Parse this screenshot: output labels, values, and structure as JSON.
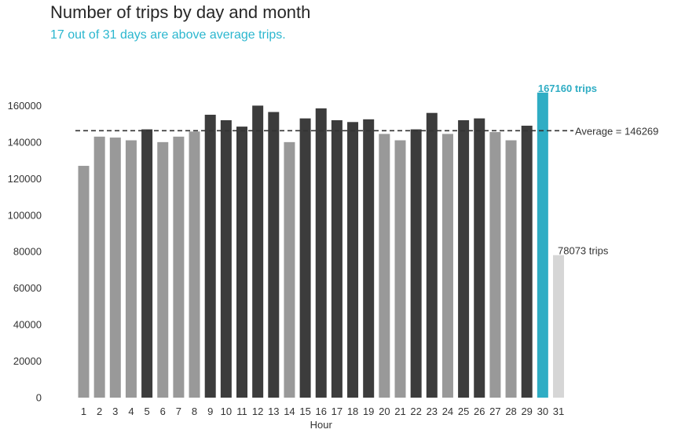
{
  "title": "Number of trips by day and month",
  "subtitle": "17 out of 31 days are above average trips.",
  "colors": {
    "above": "#3c3c3c",
    "below": "#999999",
    "max": "#2fadc4",
    "min": "#d6d6d6",
    "subtitle": "#2bb7cf",
    "average_line": "#333333"
  },
  "chart_data": {
    "type": "bar",
    "xlabel": "Hour",
    "ylabel": "",
    "ylim": [
      0,
      170000
    ],
    "yticks": [
      0,
      20000,
      40000,
      60000,
      80000,
      100000,
      120000,
      140000,
      160000
    ],
    "grid": false,
    "categories": [
      "1",
      "2",
      "3",
      "4",
      "5",
      "6",
      "7",
      "8",
      "9",
      "10",
      "11",
      "12",
      "13",
      "14",
      "15",
      "16",
      "17",
      "18",
      "19",
      "20",
      "21",
      "22",
      "23",
      "24",
      "25",
      "26",
      "27",
      "28",
      "29",
      "30",
      "31"
    ],
    "values": [
      127000,
      143000,
      142500,
      141000,
      147000,
      140000,
      143000,
      145800,
      155000,
      152000,
      148500,
      160000,
      156500,
      140000,
      153000,
      158500,
      152000,
      151000,
      152500,
      144500,
      141000,
      147000,
      156000,
      144500,
      152000,
      153000,
      145500,
      141000,
      149000,
      167160,
      78073
    ],
    "average": 146269,
    "average_label": "Average = 146269",
    "max_label": "167160 trips",
    "min_label": "78073 trips"
  }
}
